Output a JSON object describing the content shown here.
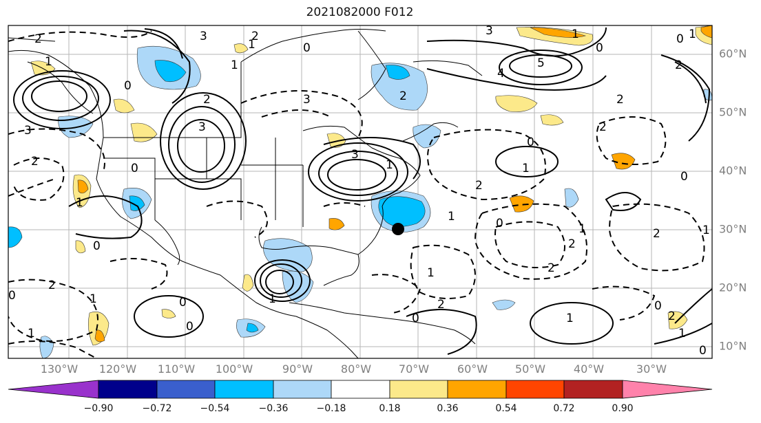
{
  "title": "2021082000 F012",
  "lon_labels": [
    "130°W",
    "120°W",
    "110°W",
    "100°W",
    "90°W",
    "80°W",
    "70°W",
    "60°W",
    "50°W",
    "40°W",
    "30°W"
  ],
  "lat_labels": [
    "60°N",
    "50°N",
    "40°N",
    "30°N",
    "20°N",
    "10°N"
  ],
  "colorbar": {
    "labels": [
      "−0.90",
      "−0.72",
      "−0.54",
      "−0.36",
      "−0.18",
      "0.18",
      "0.36",
      "0.54",
      "0.72",
      "0.90"
    ],
    "colors": [
      "#9932cc",
      "#00008b",
      "#3a5fcd",
      "#00bfff",
      "#add8f8",
      "#ffffff",
      "#fce98a",
      "#ffa500",
      "#ff4500",
      "#b22222",
      "#ff82ab"
    ]
  },
  "contour_labels": [
    "2",
    "3",
    "2",
    "1",
    "0",
    "2",
    "3",
    "1",
    "0",
    "3",
    "3",
    "2",
    "0",
    "3",
    "1",
    "0",
    "1",
    "0",
    "1",
    "0",
    "1",
    "2",
    "1",
    "0",
    "2",
    "0",
    "1",
    "2",
    "1",
    "2",
    "5",
    "4",
    "3",
    "1",
    "2",
    "0",
    "2",
    "0",
    "0",
    "1",
    "2",
    "1",
    "1",
    "2",
    "1",
    "0",
    "0",
    "2",
    "1",
    "0",
    "2",
    "0",
    "1",
    "1",
    "2"
  ],
  "marker": "storm-center-dot"
}
